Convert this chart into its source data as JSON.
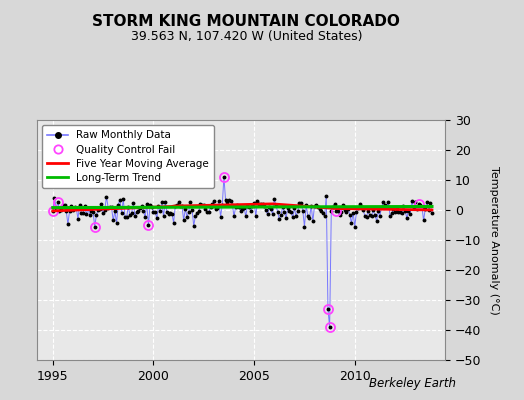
{
  "title": "STORM KING MOUNTAIN COLORADO",
  "subtitle": "39.563 N, 107.420 W (United States)",
  "ylabel": "Temperature Anomaly (°C)",
  "watermark": "Berkeley Earth",
  "xlim": [
    1994.2,
    2014.5
  ],
  "ylim": [
    -50,
    30
  ],
  "yticks": [
    -50,
    -40,
    -30,
    -20,
    -10,
    0,
    10,
    20,
    30
  ],
  "xticks": [
    1995,
    2000,
    2005,
    2010
  ],
  "bg_color": "#d8d8d8",
  "plot_bg_color": "#e8e8e8",
  "raw_line_color": "#7777ff",
  "raw_marker_color": "#000000",
  "qc_fail_color": "#ff44ff",
  "moving_avg_color": "#ff0000",
  "trend_color": "#00bb00",
  "seed": 99
}
